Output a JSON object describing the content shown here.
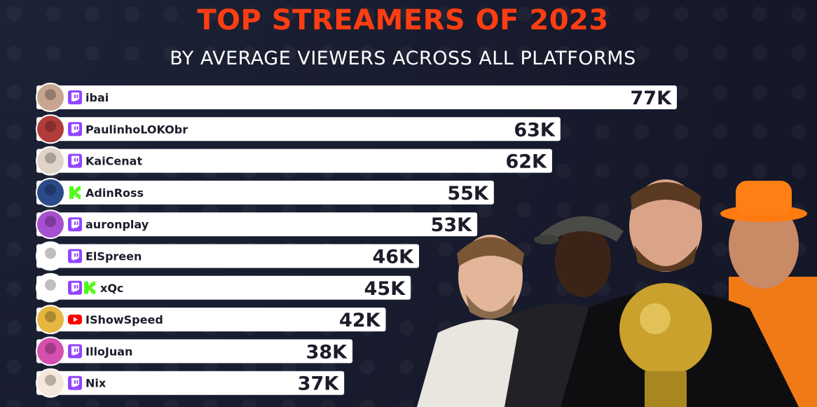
{
  "title": "TOP STREAMERS OF 2023",
  "subtitle": "BY AVERAGE VIEWERS ACROSS ALL PLATFORMS",
  "colors": {
    "title": "#ff3d12",
    "background": "#16192a",
    "bar": "#ffffff",
    "twitch": "#9146ff",
    "kick": "#53fc18",
    "youtube": "#ff0000"
  },
  "chart_data": {
    "type": "bar",
    "orientation": "horizontal",
    "title": "TOP STREAMERS OF 2023",
    "subtitle": "BY AVERAGE VIEWERS ACROSS ALL PLATFORMS",
    "xlabel": "",
    "ylabel": "",
    "xlim": [
      0,
      77
    ],
    "unit": "K",
    "categories": [
      "ibai",
      "PaulinhoLOKObr",
      "KaiCenat",
      "AdinRoss",
      "auronplay",
      "ElSpreen",
      "xQc",
      "IShowSpeed",
      "IlloJuan",
      "Nix"
    ],
    "values": [
      77,
      63,
      62,
      55,
      53,
      46,
      45,
      42,
      38,
      37
    ],
    "value_labels": [
      "77K",
      "63K",
      "62K",
      "55K",
      "53K",
      "46K",
      "45K",
      "42K",
      "38K",
      "37K"
    ],
    "platforms": [
      [
        "twitch-icon"
      ],
      [
        "twitch-icon"
      ],
      [
        "twitch-icon"
      ],
      [
        "kick-icon"
      ],
      [
        "twitch-icon"
      ],
      [
        "twitch-icon"
      ],
      [
        "twitch-icon",
        "kick-icon"
      ],
      [
        "youtube-icon"
      ],
      [
        "twitch-icon"
      ],
      [
        "twitch-icon"
      ]
    ]
  }
}
